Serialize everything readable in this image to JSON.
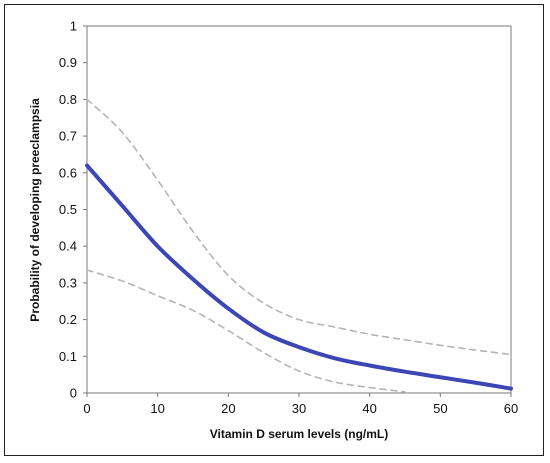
{
  "chart_data": {
    "type": "line",
    "title": "",
    "xlabel": "Vitamin D serum levels (ng/mL)",
    "ylabel": "Probability of developing preeclampsia",
    "xlim": [
      0,
      60
    ],
    "ylim": [
      0,
      1
    ],
    "x_ticks": [
      "0",
      "10",
      "20",
      "30",
      "40",
      "50",
      "60"
    ],
    "y_ticks": [
      "0",
      "0.1",
      "0.2",
      "0.3",
      "0.4",
      "0.5",
      "0.6",
      "0.7",
      "0.8",
      "0.9",
      "1"
    ],
    "grid": false,
    "series": [
      {
        "style": "solid",
        "color": "#3c46b4",
        "x": [
          0,
          5,
          10,
          15,
          20,
          25,
          30,
          35,
          40,
          45,
          50,
          55,
          60
        ],
        "y": [
          0.62,
          0.51,
          0.4,
          0.31,
          0.23,
          0.165,
          0.125,
          0.095,
          0.075,
          0.058,
          0.043,
          0.028,
          0.012
        ]
      },
      {
        "style": "dashed",
        "color": "#b4b4b4",
        "x": [
          0,
          5,
          10,
          15,
          20,
          25,
          30,
          35,
          40,
          45,
          50,
          55,
          60
        ],
        "y": [
          0.8,
          0.71,
          0.58,
          0.44,
          0.32,
          0.245,
          0.2,
          0.18,
          0.16,
          0.145,
          0.13,
          0.117,
          0.105
        ]
      },
      {
        "style": "dashed",
        "color": "#b4b4b4",
        "x": [
          0,
          5,
          10,
          15,
          20,
          25,
          30,
          35,
          40,
          45
        ],
        "y": [
          0.335,
          0.305,
          0.265,
          0.225,
          0.17,
          0.11,
          0.06,
          0.03,
          0.015,
          0.003
        ]
      }
    ]
  }
}
